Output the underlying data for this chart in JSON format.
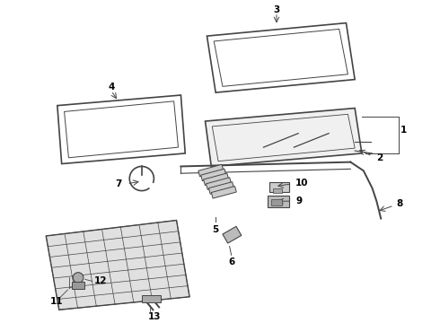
{
  "bg_color": "#ffffff",
  "line_color": "#444444",
  "figsize": [
    4.9,
    3.6
  ],
  "dpi": 100
}
